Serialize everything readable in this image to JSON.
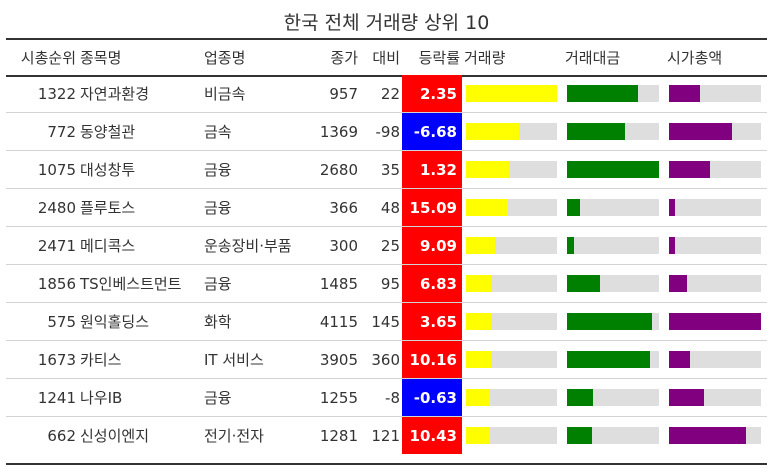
{
  "title": "한국 전체 거래량 상위 10",
  "headers": [
    "시총순위",
    "종목명",
    "업종명",
    "종가",
    "대비",
    "등락률",
    "거래량",
    "거래대금",
    "시가총액"
  ],
  "colors": {
    "up": "#ff0000",
    "down": "#0000ff",
    "volume": "#ffff00",
    "value": "#008000",
    "market_cap": "#800080",
    "track": "#dedede"
  },
  "rows": [
    {
      "rank": "1322",
      "name": "자연과환경",
      "sector": "비금속",
      "close": "957",
      "change": "22",
      "pct": "2.35"
    },
    {
      "rank": "772",
      "name": "동양철관",
      "sector": "금속",
      "close": "1369",
      "change": "-98",
      "pct": "-6.68"
    },
    {
      "rank": "1075",
      "name": "대성창투",
      "sector": "금융",
      "close": "2680",
      "change": "35",
      "pct": "1.32"
    },
    {
      "rank": "2480",
      "name": "플루토스",
      "sector": "금융",
      "close": "366",
      "change": "48",
      "pct": "15.09"
    },
    {
      "rank": "2471",
      "name": "메디콕스",
      "sector": "운송장비·부품",
      "close": "300",
      "change": "25",
      "pct": "9.09"
    },
    {
      "rank": "1856",
      "name": "TS인베스트먼트",
      "sector": "금융",
      "close": "1485",
      "change": "95",
      "pct": "6.83"
    },
    {
      "rank": "575",
      "name": "원익홀딩스",
      "sector": "화학",
      "close": "4115",
      "change": "145",
      "pct": "3.65"
    },
    {
      "rank": "1673",
      "name": "카티스",
      "sector": "IT 서비스",
      "close": "3905",
      "change": "360",
      "pct": "10.16"
    },
    {
      "rank": "1241",
      "name": "나우IB",
      "sector": "금융",
      "close": "1255",
      "change": "-8",
      "pct": "-0.63"
    },
    {
      "rank": "662",
      "name": "신성이엔지",
      "sector": "전기·전자",
      "close": "1281",
      "change": "121",
      "pct": "10.43"
    }
  ],
  "chart_data": {
    "type": "table",
    "title": "한국 전체 거래량 상위 10",
    "bar_columns": [
      "거래량",
      "거래대금",
      "시가총액"
    ],
    "bar_scale": "fraction of column maximum",
    "volume_fraction": [
      1.0,
      0.58,
      0.47,
      0.46,
      0.32,
      0.28,
      0.28,
      0.27,
      0.26,
      0.26
    ],
    "trade_value_fraction": [
      0.77,
      0.63,
      1.0,
      0.14,
      0.08,
      0.36,
      0.92,
      0.9,
      0.28,
      0.27
    ],
    "market_cap_fraction": [
      0.34,
      0.68,
      0.45,
      0.07,
      0.07,
      0.2,
      1.0,
      0.23,
      0.38,
      0.84
    ]
  }
}
